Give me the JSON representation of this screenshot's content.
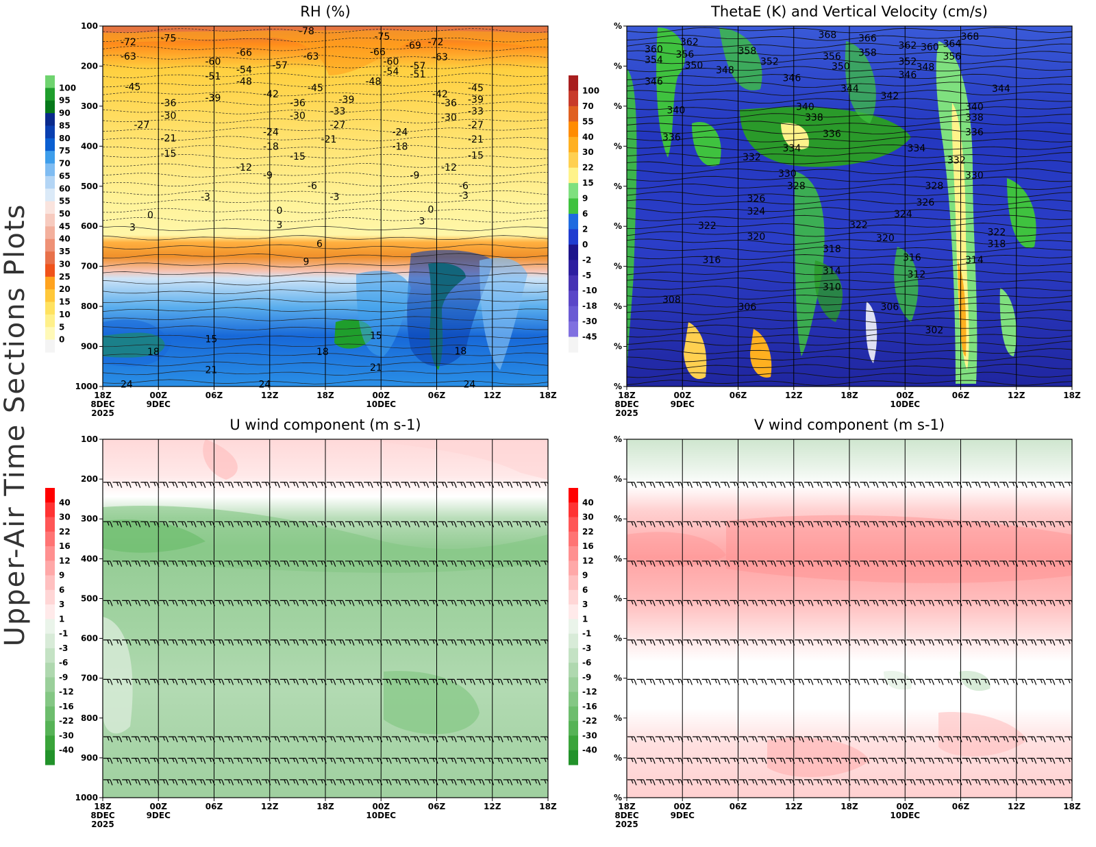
{
  "page": {
    "side_title": "Upper-Air Time Sections Plots"
  },
  "colors": {
    "rh": [
      "#f4f4f4",
      "#fff9b8",
      "#fff08a",
      "#ffe260",
      "#ffc83a",
      "#ffa31f",
      "#ff7a12",
      "#f0531b",
      "#e8714a",
      "#ee9176",
      "#f3b09d",
      "#f7cbbf",
      "#fae4de",
      "#dbeaf8",
      "#b3d5f5",
      "#7fbcf2",
      "#3e9eeb",
      "#177fe0",
      "#0b5fd1",
      "#0a3fb0",
      "#0a2a8c",
      "#06781a",
      "#1f9e2c",
      "#6fd36f"
    ],
    "thetae": [
      "#f4f4f4",
      "#8070e0",
      "#6a5ad4",
      "#5a46c8",
      "#4632b4",
      "#2d1ea0",
      "#1c148c",
      "#1f3cd0",
      "#1e6ae0",
      "#2a9a2a",
      "#3fc23f",
      "#7fe07f",
      "#fff38a",
      "#ffd050",
      "#ffb020",
      "#ff8c00",
      "#e06020",
      "#c83a2a",
      "#a81e1e"
    ],
    "wind": [
      "#22922a",
      "#3aa43a",
      "#56b356",
      "#6dbd6d",
      "#84c784",
      "#9acf9a",
      "#afd8af",
      "#c4e2c4",
      "#d8ebd8",
      "#eaf4ea",
      "#ffffff",
      "#ffeaea",
      "#ffd6d6",
      "#ffc0c0",
      "#ffa8a8",
      "#ff9090",
      "#ff7474",
      "#ff5656",
      "#ff3333",
      "#ff0000"
    ],
    "rh_hi": "#1f9e2c",
    "rh_mid": "#1768d8",
    "rh_lo": "#fff59a"
  },
  "chart_data": [
    {
      "type": "heatmap",
      "title": "RH (%)",
      "x_ticks": [
        "18Z\n8DEC\n2025",
        "00Z\n9DEC",
        "06Z",
        "12Z",
        "18Z",
        "00Z\n10DEC",
        "06Z",
        "12Z",
        "18Z"
      ],
      "y_ticks": [
        "100",
        "200",
        "300",
        "400",
        "500",
        "600",
        "700",
        "800",
        "900",
        "1000"
      ],
      "colorbar": [
        "100",
        "95",
        "90",
        "85",
        "80",
        "75",
        "70",
        "65",
        "60",
        "55",
        "50",
        "45",
        "40",
        "35",
        "30",
        "25",
        "20",
        "15",
        "10",
        "5",
        "0"
      ],
      "contour_labels": [
        {
          "t": "-72",
          "px": 0.04,
          "py": 0.03
        },
        {
          "t": "-75",
          "px": 0.13,
          "py": 0.02
        },
        {
          "t": "-78",
          "px": 0.44,
          "py": 0.0
        },
        {
          "t": "-75",
          "px": 0.61,
          "py": 0.015
        },
        {
          "t": "-69",
          "px": 0.68,
          "py": 0.04
        },
        {
          "t": "-72",
          "px": 0.73,
          "py": 0.03
        },
        {
          "t": "-63",
          "px": 0.04,
          "py": 0.07
        },
        {
          "t": "-66",
          "px": 0.3,
          "py": 0.06
        },
        {
          "t": "-63",
          "px": 0.45,
          "py": 0.07
        },
        {
          "t": "-66",
          "px": 0.6,
          "py": 0.058
        },
        {
          "t": "-63",
          "px": 0.74,
          "py": 0.072
        },
        {
          "t": "-60",
          "px": 0.23,
          "py": 0.085
        },
        {
          "t": "-60",
          "px": 0.63,
          "py": 0.085
        },
        {
          "t": "-57",
          "px": 0.38,
          "py": 0.095
        },
        {
          "t": "-57",
          "px": 0.69,
          "py": 0.097
        },
        {
          "t": "-54",
          "px": 0.3,
          "py": 0.107
        },
        {
          "t": "-54",
          "px": 0.63,
          "py": 0.112
        },
        {
          "t": "-51",
          "px": 0.23,
          "py": 0.125
        },
        {
          "t": "-51",
          "px": 0.69,
          "py": 0.12
        },
        {
          "t": "-48",
          "px": 0.3,
          "py": 0.14
        },
        {
          "t": "-48",
          "px": 0.59,
          "py": 0.14
        },
        {
          "t": "-45",
          "px": 0.05,
          "py": 0.155
        },
        {
          "t": "-45",
          "px": 0.46,
          "py": 0.158
        },
        {
          "t": "-45",
          "px": 0.82,
          "py": 0.158
        },
        {
          "t": "-42",
          "px": 0.36,
          "py": 0.175
        },
        {
          "t": "-42",
          "px": 0.74,
          "py": 0.175
        },
        {
          "t": "-39",
          "px": 0.23,
          "py": 0.185
        },
        {
          "t": "-39",
          "px": 0.53,
          "py": 0.19
        },
        {
          "t": "-39",
          "px": 0.82,
          "py": 0.19
        },
        {
          "t": "-36",
          "px": 0.13,
          "py": 0.2
        },
        {
          "t": "-36",
          "px": 0.42,
          "py": 0.2
        },
        {
          "t": "-36",
          "px": 0.76,
          "py": 0.2
        },
        {
          "t": "-33",
          "px": 0.51,
          "py": 0.222
        },
        {
          "t": "-33",
          "px": 0.82,
          "py": 0.222
        },
        {
          "t": "-30",
          "px": 0.13,
          "py": 0.235
        },
        {
          "t": "-30",
          "px": 0.42,
          "py": 0.235
        },
        {
          "t": "-30",
          "px": 0.76,
          "py": 0.24
        },
        {
          "t": "-27",
          "px": 0.07,
          "py": 0.26
        },
        {
          "t": "-27",
          "px": 0.51,
          "py": 0.26
        },
        {
          "t": "-27",
          "px": 0.82,
          "py": 0.26
        },
        {
          "t": "-24",
          "px": 0.36,
          "py": 0.28
        },
        {
          "t": "-24",
          "px": 0.65,
          "py": 0.28
        },
        {
          "t": "-21",
          "px": 0.13,
          "py": 0.298
        },
        {
          "t": "-21",
          "px": 0.49,
          "py": 0.3
        },
        {
          "t": "-21",
          "px": 0.82,
          "py": 0.3
        },
        {
          "t": "-18",
          "px": 0.36,
          "py": 0.32
        },
        {
          "t": "-18",
          "px": 0.65,
          "py": 0.32
        },
        {
          "t": "-15",
          "px": 0.13,
          "py": 0.34
        },
        {
          "t": "-15",
          "px": 0.42,
          "py": 0.348
        },
        {
          "t": "-15",
          "px": 0.82,
          "py": 0.345
        },
        {
          "t": "-12",
          "px": 0.3,
          "py": 0.378
        },
        {
          "t": "-12",
          "px": 0.76,
          "py": 0.378
        },
        {
          "t": "-9",
          "px": 0.36,
          "py": 0.4
        },
        {
          "t": "-9",
          "px": 0.69,
          "py": 0.4
        },
        {
          "t": "-6",
          "px": 0.46,
          "py": 0.43
        },
        {
          "t": "-6",
          "px": 0.8,
          "py": 0.43
        },
        {
          "t": "-3",
          "px": 0.22,
          "py": 0.46
        },
        {
          "t": "-3",
          "px": 0.51,
          "py": 0.46
        },
        {
          "t": "-3",
          "px": 0.8,
          "py": 0.456
        },
        {
          "t": "0",
          "px": 0.1,
          "py": 0.51
        },
        {
          "t": "0",
          "px": 0.39,
          "py": 0.498
        },
        {
          "t": "0",
          "px": 0.73,
          "py": 0.495
        },
        {
          "t": "3",
          "px": 0.06,
          "py": 0.545
        },
        {
          "t": "3",
          "px": 0.39,
          "py": 0.538
        },
        {
          "t": "3",
          "px": 0.71,
          "py": 0.528
        },
        {
          "t": "6",
          "px": 0.48,
          "py": 0.59
        },
        {
          "t": "9",
          "px": 0.45,
          "py": 0.64
        },
        {
          "t": "15",
          "px": 0.23,
          "py": 0.855
        },
        {
          "t": "15",
          "px": 0.6,
          "py": 0.845
        },
        {
          "t": "18",
          "px": 0.1,
          "py": 0.89
        },
        {
          "t": "18",
          "px": 0.48,
          "py": 0.89
        },
        {
          "t": "18",
          "px": 0.79,
          "py": 0.888
        },
        {
          "t": "21",
          "px": 0.23,
          "py": 0.94
        },
        {
          "t": "21",
          "px": 0.6,
          "py": 0.933
        },
        {
          "t": "24",
          "px": 0.04,
          "py": 0.98
        },
        {
          "t": "24",
          "px": 0.35,
          "py": 0.98
        },
        {
          "t": "24",
          "px": 0.81,
          "py": 0.98
        }
      ]
    },
    {
      "type": "heatmap",
      "title": "ThetaE (K) and Vertical Velocity (cm/s)",
      "x_ticks": [
        "18Z\n8DEC\n2025",
        "00Z\n9DEC",
        "06Z",
        "12Z",
        "18Z",
        "00Z\n10DEC",
        "06Z",
        "12Z",
        "18Z"
      ],
      "y_ticks": [
        "%",
        "%",
        "%",
        "%",
        "%",
        "%",
        "%",
        "%",
        "%",
        "%"
      ],
      "colorbar": [
        "100",
        "70",
        "55",
        "40",
        "30",
        "22",
        "15",
        "9",
        "6",
        "2",
        "0",
        "-2",
        "-5",
        "-10",
        "-18",
        "-30",
        "-45"
      ],
      "contour_labels": [
        {
          "t": "368",
          "px": 0.43,
          "py": 0.01
        },
        {
          "t": "366",
          "px": 0.52,
          "py": 0.02
        },
        {
          "t": "368",
          "px": 0.75,
          "py": 0.015
        },
        {
          "t": "362",
          "px": 0.12,
          "py": 0.03
        },
        {
          "t": "362",
          "px": 0.61,
          "py": 0.04
        },
        {
          "t": "360",
          "px": 0.66,
          "py": 0.045
        },
        {
          "t": "364",
          "px": 0.71,
          "py": 0.035
        },
        {
          "t": "360",
          "px": 0.04,
          "py": 0.05
        },
        {
          "t": "358",
          "px": 0.25,
          "py": 0.055
        },
        {
          "t": "358",
          "px": 0.52,
          "py": 0.06
        },
        {
          "t": "356",
          "px": 0.11,
          "py": 0.065
        },
        {
          "t": "356",
          "px": 0.44,
          "py": 0.07
        },
        {
          "t": "356",
          "px": 0.71,
          "py": 0.07
        },
        {
          "t": "354",
          "px": 0.04,
          "py": 0.08
        },
        {
          "t": "352",
          "px": 0.3,
          "py": 0.085
        },
        {
          "t": "352",
          "px": 0.61,
          "py": 0.085
        },
        {
          "t": "350",
          "px": 0.13,
          "py": 0.095
        },
        {
          "t": "350",
          "px": 0.46,
          "py": 0.098
        },
        {
          "t": "348",
          "px": 0.2,
          "py": 0.108
        },
        {
          "t": "348",
          "px": 0.65,
          "py": 0.1
        },
        {
          "t": "346",
          "px": 0.04,
          "py": 0.14
        },
        {
          "t": "346",
          "px": 0.35,
          "py": 0.13
        },
        {
          "t": "346",
          "px": 0.61,
          "py": 0.122
        },
        {
          "t": "344",
          "px": 0.48,
          "py": 0.16
        },
        {
          "t": "344",
          "px": 0.82,
          "py": 0.16
        },
        {
          "t": "342",
          "px": 0.57,
          "py": 0.18
        },
        {
          "t": "340",
          "px": 0.09,
          "py": 0.22
        },
        {
          "t": "340",
          "px": 0.38,
          "py": 0.21
        },
        {
          "t": "340",
          "px": 0.76,
          "py": 0.21
        },
        {
          "t": "338",
          "px": 0.4,
          "py": 0.24
        },
        {
          "t": "338",
          "px": 0.76,
          "py": 0.24
        },
        {
          "t": "336",
          "px": 0.08,
          "py": 0.295
        },
        {
          "t": "336",
          "px": 0.44,
          "py": 0.285
        },
        {
          "t": "336",
          "px": 0.76,
          "py": 0.28
        },
        {
          "t": "334",
          "px": 0.35,
          "py": 0.325
        },
        {
          "t": "334",
          "px": 0.63,
          "py": 0.325
        },
        {
          "t": "332",
          "px": 0.26,
          "py": 0.35
        },
        {
          "t": "332",
          "px": 0.72,
          "py": 0.358
        },
        {
          "t": "330",
          "px": 0.34,
          "py": 0.395
        },
        {
          "t": "330",
          "px": 0.76,
          "py": 0.4
        },
        {
          "t": "328",
          "px": 0.36,
          "py": 0.43
        },
        {
          "t": "328",
          "px": 0.67,
          "py": 0.43
        },
        {
          "t": "326",
          "px": 0.27,
          "py": 0.465
        },
        {
          "t": "326",
          "px": 0.65,
          "py": 0.475
        },
        {
          "t": "324",
          "px": 0.27,
          "py": 0.5
        },
        {
          "t": "324",
          "px": 0.6,
          "py": 0.508
        },
        {
          "t": "322",
          "px": 0.16,
          "py": 0.54
        },
        {
          "t": "322",
          "px": 0.5,
          "py": 0.538
        },
        {
          "t": "322",
          "px": 0.81,
          "py": 0.558
        },
        {
          "t": "320",
          "px": 0.27,
          "py": 0.57
        },
        {
          "t": "320",
          "px": 0.56,
          "py": 0.574
        },
        {
          "t": "318",
          "px": 0.44,
          "py": 0.605
        },
        {
          "t": "318",
          "px": 0.81,
          "py": 0.59
        },
        {
          "t": "316",
          "px": 0.17,
          "py": 0.635
        },
        {
          "t": "316",
          "px": 0.62,
          "py": 0.628
        },
        {
          "t": "314",
          "px": 0.44,
          "py": 0.665
        },
        {
          "t": "314",
          "px": 0.76,
          "py": 0.635
        },
        {
          "t": "312",
          "px": 0.63,
          "py": 0.675
        },
        {
          "t": "310",
          "px": 0.44,
          "py": 0.71
        },
        {
          "t": "308",
          "px": 0.08,
          "py": 0.745
        },
        {
          "t": "306",
          "px": 0.25,
          "py": 0.765
        },
        {
          "t": "306",
          "px": 0.57,
          "py": 0.765
        },
        {
          "t": "302",
          "px": 0.67,
          "py": 0.83
        }
      ]
    },
    {
      "type": "heatmap",
      "title": "U wind component (m s-1)",
      "x_ticks": [
        "18Z\n8DEC\n2025",
        "00Z\n9DEC",
        "06Z",
        "12Z",
        "18Z",
        "00Z\n10DEC",
        "06Z",
        "12Z",
        "18Z"
      ],
      "y_ticks": [
        "100",
        "200",
        "300",
        "400",
        "500",
        "600",
        "700",
        "800",
        "900",
        "1000"
      ],
      "colorbar": [
        "40",
        "30",
        "22",
        "16",
        "12",
        "9",
        "6",
        "3",
        "1",
        "-1",
        "-3",
        "-6",
        "-9",
        "-12",
        "-16",
        "-22",
        "-30",
        "-40"
      ]
    },
    {
      "type": "heatmap",
      "title": "V wind component (m s-1)",
      "x_ticks": [
        "18Z\n8DEC\n2025",
        "00Z\n9DEC",
        "06Z",
        "12Z",
        "18Z",
        "00Z\n10DEC",
        "06Z",
        "12Z",
        "18Z"
      ],
      "y_ticks": [
        "%",
        "%",
        "%",
        "%",
        "%",
        "%",
        "%",
        "%",
        "%",
        "%"
      ],
      "colorbar": [
        "40",
        "30",
        "22",
        "16",
        "12",
        "9",
        "6",
        "3",
        "1",
        "-1",
        "-3",
        "-6",
        "-9",
        "-12",
        "-16",
        "-22",
        "-30",
        "-40"
      ]
    }
  ]
}
